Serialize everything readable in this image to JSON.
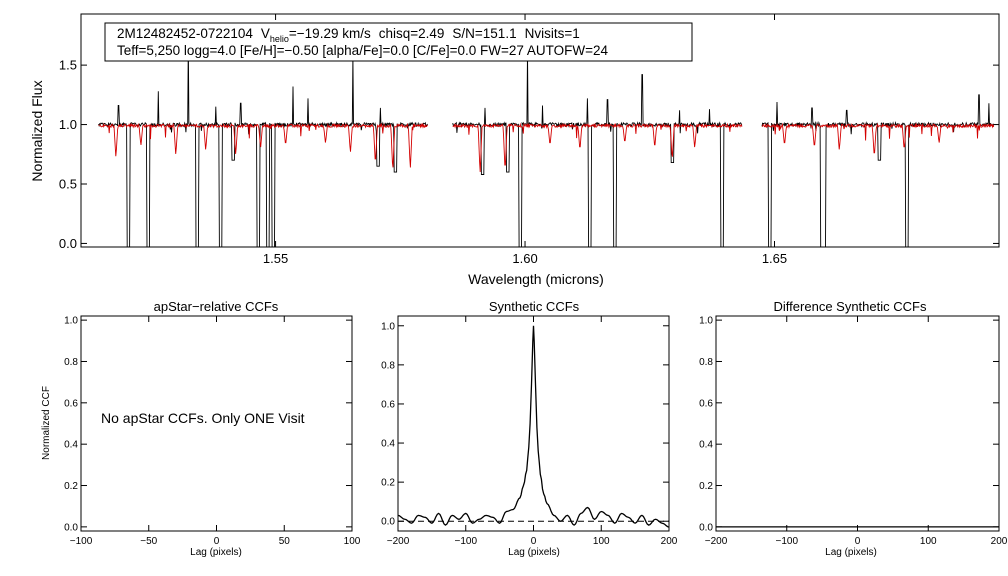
{
  "header": {
    "star_id": "2M12482452-0722104",
    "v_prefix": "V",
    "v_sub": "helio",
    "v_value": "=−19.29 km/s",
    "chisq": "chisq=2.49",
    "snr": "S/N=151.1",
    "nvisits": "Nvisits=1",
    "line2": "Teff=5,250 logg=4.0 [Fe/H]=−0.50 [alpha/Fe]=0.0 [C/Fe]=0.0 FW=27 AUTOFW=24"
  },
  "colors": {
    "observed": "#000000",
    "model": "#d40000",
    "axes": "#000000"
  },
  "chart_data": [
    {
      "id": "spectrum",
      "type": "line",
      "title": "",
      "xlabel": "Wavelength (microns)",
      "ylabel": "Normalized Flux",
      "xlim": [
        1.511,
        1.695
      ],
      "ylim": [
        -0.03,
        1.93
      ],
      "xticks": [
        1.55,
        1.6,
        1.65
      ],
      "xtick_labels": [
        "1.55",
        "1.60",
        "1.65"
      ],
      "yticks": [
        0.0,
        0.5,
        1.0,
        1.5
      ],
      "ytick_labels": [
        "0.0",
        "0.5",
        "1.0",
        "1.5"
      ],
      "chips": [
        [
          1.5145,
          1.5805
        ],
        [
          1.5855,
          1.6435
        ],
        [
          1.6475,
          1.694
        ]
      ],
      "series": [
        {
          "key": "observed",
          "note": "black = observed",
          "continuum": 1.0,
          "spikes": [
            [
              1.5185,
              1.16
            ],
            [
              1.5245,
              1.7
            ],
            [
              1.5265,
              1.28
            ],
            [
              1.5325,
              1.72
            ],
            [
              1.538,
              1.15
            ],
            [
              1.543,
              1.18
            ],
            [
              1.5485,
              1.2
            ],
            [
              1.5535,
              1.32
            ],
            [
              1.5565,
              1.22
            ],
            [
              1.5655,
              1.58
            ],
            [
              1.571,
              1.14
            ],
            [
              1.592,
              1.14
            ],
            [
              1.6005,
              1.62
            ],
            [
              1.6035,
              1.16
            ],
            [
              1.6125,
              1.22
            ],
            [
              1.6165,
              1.21
            ],
            [
              1.6235,
              1.42
            ],
            [
              1.631,
              1.12
            ],
            [
              1.637,
              1.13
            ],
            [
              1.6395,
              1.18
            ],
            [
              1.6505,
              1.19
            ],
            [
              1.6575,
              1.14
            ],
            [
              1.6645,
              1.12
            ],
            [
              1.691,
              1.25
            ],
            [
              1.693,
              1.18
            ]
          ],
          "dips": [
            [
              1.5205,
              -0.03
            ],
            [
              1.5245,
              -0.03
            ],
            [
              1.5343,
              -0.03
            ],
            [
              1.539,
              -0.03
            ],
            [
              1.5465,
              -0.03
            ],
            [
              1.5485,
              -0.03
            ],
            [
              1.5495,
              -0.03
            ],
            [
              1.599,
              -0.03
            ],
            [
              1.613,
              -0.03
            ],
            [
              1.618,
              -0.03
            ],
            [
              1.6395,
              -0.03
            ],
            [
              1.649,
              -0.03
            ],
            [
              1.6595,
              -0.03
            ],
            [
              1.66,
              -0.03
            ],
            [
              1.6765,
              -0.03
            ],
            [
              1.5415,
              0.7
            ],
            [
              1.5705,
              0.65
            ],
            [
              1.574,
              0.6
            ],
            [
              1.5915,
              0.58
            ],
            [
              1.5965,
              0.6
            ],
            [
              1.6295,
              0.68
            ],
            [
              1.671,
              0.7
            ]
          ]
        },
        {
          "key": "model",
          "note": "red = synthetic model",
          "continuum": 0.99,
          "dips": [
            [
              1.518,
              0.72
            ],
            [
              1.523,
              0.82
            ],
            [
              1.53,
              0.74
            ],
            [
              1.536,
              0.78
            ],
            [
              1.542,
              0.74
            ],
            [
              1.547,
              0.8
            ],
            [
              1.552,
              0.82
            ],
            [
              1.56,
              0.84
            ],
            [
              1.565,
              0.76
            ],
            [
              1.57,
              0.66
            ],
            [
              1.5735,
              0.6
            ],
            [
              1.577,
              0.62
            ],
            [
              1.591,
              0.58
            ],
            [
              1.596,
              0.6
            ],
            [
              1.605,
              0.82
            ],
            [
              1.611,
              0.78
            ],
            [
              1.62,
              0.84
            ],
            [
              1.626,
              0.8
            ],
            [
              1.6295,
              0.7
            ],
            [
              1.634,
              0.8
            ],
            [
              1.652,
              0.82
            ],
            [
              1.658,
              0.8
            ],
            [
              1.663,
              0.78
            ],
            [
              1.67,
              0.72
            ],
            [
              1.676,
              0.78
            ],
            [
              1.683,
              0.84
            ]
          ]
        }
      ]
    },
    {
      "id": "apstar_ccf",
      "type": "line",
      "title": "apStar−relative CCFs",
      "xlabel": "Lag (pixels)",
      "ylabel": "Normalized CCF",
      "xlim": [
        -100,
        100
      ],
      "ylim": [
        -0.02,
        1.02
      ],
      "xticks": [
        -100,
        -50,
        0,
        50,
        100
      ],
      "xtick_labels": [
        "−100",
        "−50",
        "0",
        "50",
        "100"
      ],
      "yticks": [
        0.0,
        0.2,
        0.4,
        0.6,
        0.8,
        1.0
      ],
      "ytick_labels": [
        "0.0",
        "0.2",
        "0.4",
        "0.6",
        "0.8",
        "1.0"
      ],
      "message": "No apStar CCFs.  Only ONE Visit",
      "series": []
    },
    {
      "id": "synthetic_ccf",
      "type": "line",
      "title": "Synthetic CCFs",
      "xlabel": "Lag (pixels)",
      "ylabel": "",
      "xlim": [
        -200,
        200
      ],
      "ylim": [
        -0.05,
        1.05
      ],
      "xticks": [
        -200,
        -100,
        0,
        100,
        200
      ],
      "xtick_labels": [
        "−200",
        "−100",
        "0",
        "100",
        "200"
      ],
      "yticks": [
        0.0,
        0.2,
        0.4,
        0.6,
        0.8,
        1.0
      ],
      "ytick_labels": [
        "0.0",
        "0.2",
        "0.4",
        "0.6",
        "0.8",
        "1.0"
      ],
      "baseline": 0.0,
      "series": [
        {
          "key": "ccf",
          "x": [
            -200,
            -190,
            -180,
            -170,
            -160,
            -150,
            -140,
            -130,
            -120,
            -110,
            -100,
            -90,
            -80,
            -70,
            -60,
            -50,
            -40,
            -30,
            -20,
            -15,
            -10,
            -7,
            -5,
            -3,
            -1,
            0,
            1,
            3,
            5,
            7,
            10,
            15,
            20,
            30,
            40,
            50,
            60,
            70,
            80,
            90,
            100,
            110,
            120,
            130,
            140,
            150,
            160,
            170,
            180,
            190,
            200
          ],
          "y": [
            0.03,
            0.01,
            -0.01,
            0.03,
            0.02,
            -0.01,
            0.04,
            -0.02,
            0.03,
            0.01,
            0.04,
            -0.01,
            0.01,
            0.03,
            0.02,
            -0.01,
            0.05,
            0.06,
            0.12,
            0.18,
            0.26,
            0.38,
            0.5,
            0.7,
            0.92,
            1.0,
            0.92,
            0.7,
            0.48,
            0.36,
            0.24,
            0.14,
            0.09,
            0.03,
            0.0,
            0.03,
            -0.02,
            0.04,
            0.07,
            0.01,
            0.05,
            0.03,
            -0.01,
            0.04,
            0.02,
            -0.01,
            0.03,
            -0.02,
            0.01,
            -0.01,
            -0.03
          ]
        }
      ]
    },
    {
      "id": "difference_ccf",
      "type": "line",
      "title": "Difference Synthetic CCFs",
      "xlabel": "Lag (pixels)",
      "ylabel": "",
      "xlim": [
        -200,
        200
      ],
      "ylim": [
        -0.02,
        1.02
      ],
      "xticks": [
        -200,
        -100,
        0,
        100,
        200
      ],
      "xtick_labels": [
        "−200",
        "−100",
        "0",
        "100",
        "200"
      ],
      "yticks": [
        0.0,
        0.2,
        0.4,
        0.6,
        0.8,
        1.0
      ],
      "ytick_labels": [
        "0.0",
        "0.2",
        "0.4",
        "0.6",
        "0.8",
        "1.0"
      ],
      "series": [
        {
          "key": "diff",
          "x": [
            -200,
            200
          ],
          "y": [
            0.0,
            0.0
          ]
        }
      ]
    }
  ]
}
